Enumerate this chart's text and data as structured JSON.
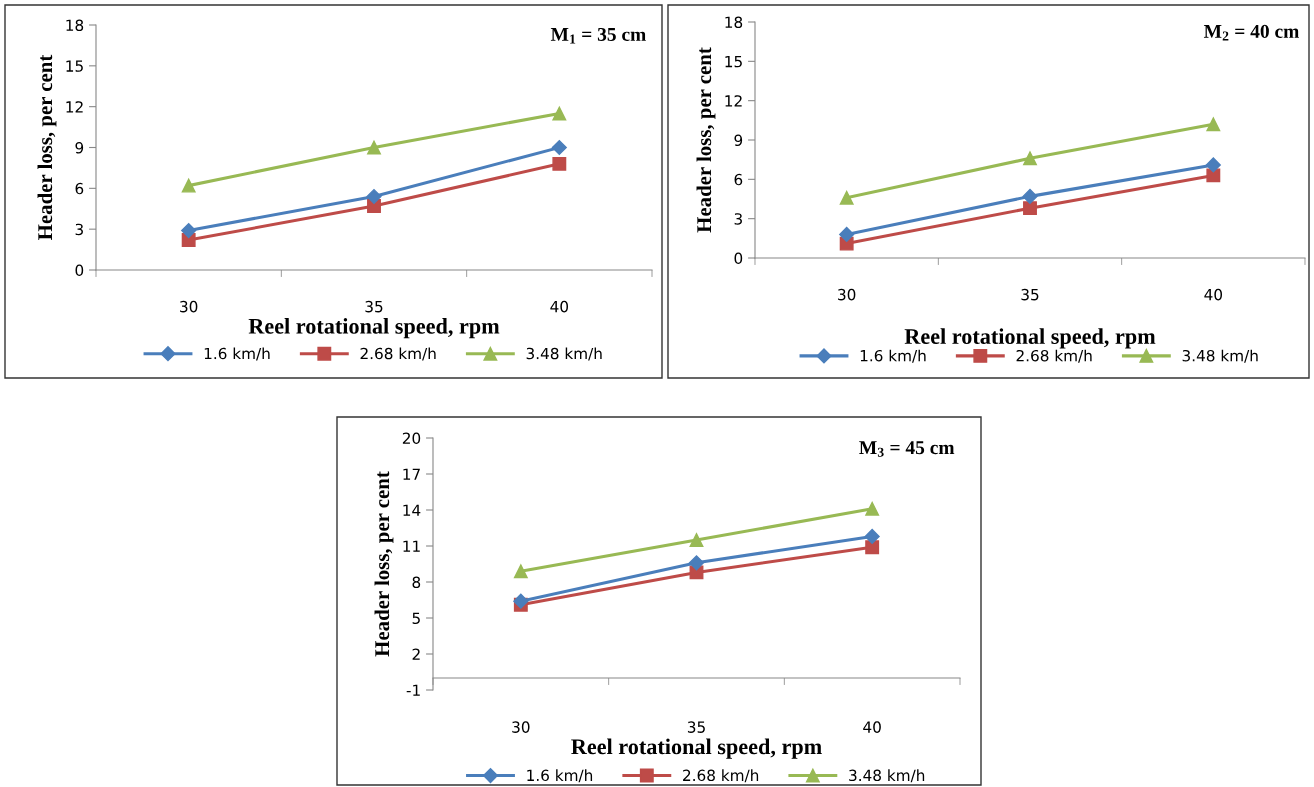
{
  "chart_data": [
    {
      "type": "line",
      "xlabel": "Reel rotational speed, rpm",
      "ylabel": "Header loss, per cent",
      "categories": [
        "30",
        "35",
        "40"
      ],
      "ylim": [
        0,
        18
      ],
      "yticks": [
        0,
        3,
        6,
        9,
        12,
        15,
        18
      ],
      "grid": false,
      "legend": "bottom",
      "annotations": [
        "M$_{1}$ = 35 cm"
      ],
      "series": [
        {
          "name": "1.6 km/h",
          "color": "#4a7ebb",
          "marker": "diamond",
          "values": [
            2.9,
            5.4,
            9.0
          ]
        },
        {
          "name": "2.68 km/h",
          "color": "#be4b48",
          "marker": "square",
          "values": [
            2.2,
            4.7,
            7.8
          ]
        },
        {
          "name": "3.48 km/h",
          "color": "#98b954",
          "marker": "triangle",
          "values": [
            6.2,
            9.0,
            11.5
          ]
        }
      ]
    },
    {
      "type": "line",
      "xlabel": "Reel rotational speed, rpm",
      "ylabel": "Header loss, per cent",
      "categories": [
        "30",
        "35",
        "40"
      ],
      "ylim": [
        0,
        18
      ],
      "yticks": [
        0,
        3,
        6,
        9,
        12,
        15,
        18
      ],
      "grid": false,
      "legend": "bottom",
      "annotations": [
        "M$_{2}$ = 40 cm"
      ],
      "series": [
        {
          "name": "1.6 km/h",
          "color": "#4a7ebb",
          "marker": "diamond",
          "values": [
            1.8,
            4.7,
            7.1
          ]
        },
        {
          "name": "2.68 km/h",
          "color": "#be4b48",
          "marker": "square",
          "values": [
            1.1,
            3.8,
            6.3
          ]
        },
        {
          "name": "3.48 km/h",
          "color": "#98b954",
          "marker": "triangle",
          "values": [
            4.6,
            7.6,
            10.2
          ]
        }
      ]
    },
    {
      "type": "line",
      "xlabel": "Reel rotational speed, rpm",
      "ylabel": "Header loss, per cent",
      "categories": [
        "30",
        "35",
        "40"
      ],
      "ylim": [
        -1,
        20
      ],
      "yticks": [
        -1,
        2,
        5,
        8,
        11,
        14,
        17,
        20
      ],
      "grid": false,
      "legend": "bottom",
      "annotations": [
        "M$_{3}$ = 45 cm"
      ],
      "series": [
        {
          "name": "1.6 km/h",
          "color": "#4a7ebb",
          "marker": "diamond",
          "values": [
            6.4,
            9.6,
            11.8
          ]
        },
        {
          "name": "2.68 km/h",
          "color": "#be4b48",
          "marker": "square",
          "values": [
            6.1,
            8.8,
            10.9
          ]
        },
        {
          "name": "3.48 km/h",
          "color": "#98b954",
          "marker": "triangle",
          "values": [
            8.9,
            11.5,
            14.1
          ]
        }
      ]
    }
  ]
}
